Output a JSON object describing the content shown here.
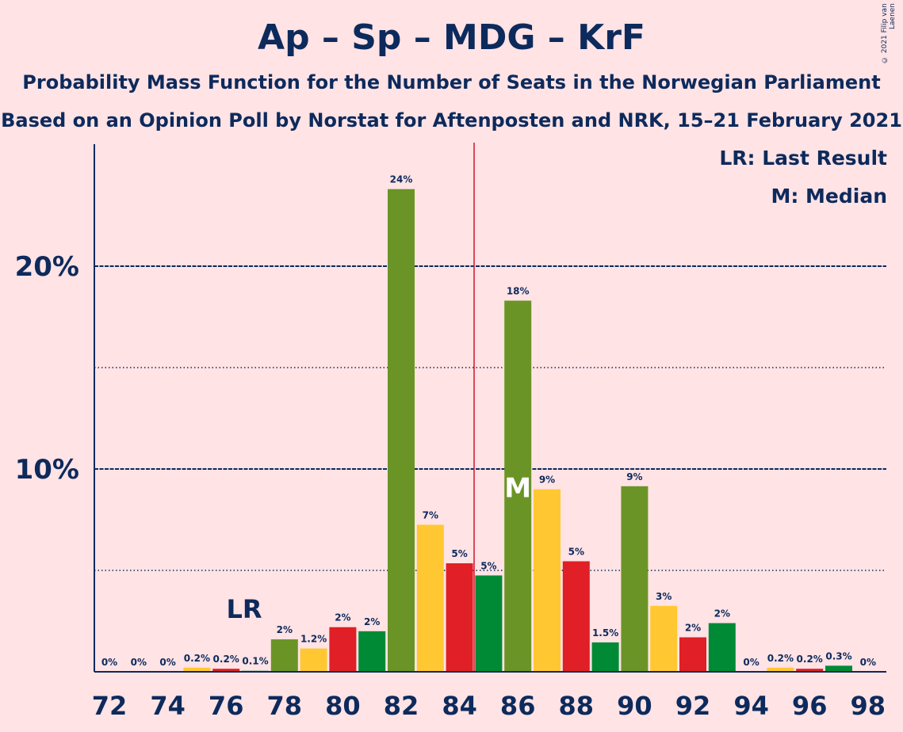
{
  "copyright": "© 2021 Filip van Laenen",
  "legend": {
    "lr": "LR: Last Result",
    "m": "M: Median"
  },
  "colors": {
    "background": "#ffe3e5",
    "text": "#0d2a5c",
    "Ap": "#e01f26",
    "Sp": "#6b9426",
    "MDG": "#ffc832",
    "KrF": "#008a36",
    "majority_line": "#d0152b"
  },
  "chart_data": {
    "type": "bar",
    "title": "Ap – Sp – MDG – KrF",
    "subtitle": "Probability Mass Function for the Number of Seats in the Norwegian Parliament",
    "subtitle2": "Based on an Opinion Poll by Norstat for Aftenposten and NRK, 15–21 February 2021",
    "xlabel": "",
    "ylabel": "",
    "ylim": [
      0,
      26
    ],
    "y_ticks": [
      {
        "value": 10,
        "label": "10%"
      },
      {
        "value": 20,
        "label": "20%"
      }
    ],
    "y_dotted_gridlines": [
      5,
      15
    ],
    "x_ticks": [
      72,
      74,
      76,
      78,
      80,
      82,
      84,
      86,
      88,
      90,
      92,
      94,
      96,
      98
    ],
    "majority_line_x": 84.5,
    "last_result": {
      "seat": 77,
      "label": "LR"
    },
    "median": {
      "seat": 86,
      "label": "M"
    },
    "bars": [
      {
        "seat": 72,
        "value": 0,
        "label": "0%",
        "color_key": "Ap"
      },
      {
        "seat": 73,
        "value": 0,
        "label": "0%",
        "color_key": "Ap"
      },
      {
        "seat": 74,
        "value": 0,
        "label": "0%",
        "color_key": "Ap"
      },
      {
        "seat": 75,
        "value": 0.2,
        "label": "0.2%",
        "color_key": "MDG"
      },
      {
        "seat": 76,
        "value": 0.15,
        "label": "0.2%",
        "color_key": "Ap"
      },
      {
        "seat": 77,
        "value": 0.05,
        "label": "0.1%",
        "color_key": "KrF"
      },
      {
        "seat": 78,
        "value": 1.6,
        "label": "2%",
        "color_key": "Sp"
      },
      {
        "seat": 79,
        "value": 1.15,
        "label": "1.2%",
        "color_key": "MDG"
      },
      {
        "seat": 80,
        "value": 2.2,
        "label": "2%",
        "color_key": "Ap"
      },
      {
        "seat": 81,
        "value": 2.0,
        "label": "2%",
        "color_key": "KrF"
      },
      {
        "seat": 82,
        "value": 23.8,
        "label": "24%",
        "color_key": "Sp"
      },
      {
        "seat": 83,
        "value": 7.25,
        "label": "7%",
        "color_key": "MDG"
      },
      {
        "seat": 84,
        "value": 5.35,
        "label": "5%",
        "color_key": "Ap"
      },
      {
        "seat": 85,
        "value": 4.75,
        "label": "5%",
        "color_key": "KrF"
      },
      {
        "seat": 86,
        "value": 18.3,
        "label": "18%",
        "color_key": "Sp"
      },
      {
        "seat": 87,
        "value": 9.0,
        "label": "9%",
        "color_key": "MDG"
      },
      {
        "seat": 88,
        "value": 5.45,
        "label": "5%",
        "color_key": "Ap"
      },
      {
        "seat": 89,
        "value": 1.45,
        "label": "1.5%",
        "color_key": "KrF"
      },
      {
        "seat": 90,
        "value": 9.15,
        "label": "9%",
        "color_key": "Sp"
      },
      {
        "seat": 91,
        "value": 3.25,
        "label": "3%",
        "color_key": "MDG"
      },
      {
        "seat": 92,
        "value": 1.7,
        "label": "2%",
        "color_key": "Ap"
      },
      {
        "seat": 93,
        "value": 2.4,
        "label": "2%",
        "color_key": "KrF"
      },
      {
        "seat": 94,
        "value": 0,
        "label": "0%",
        "color_key": "Sp"
      },
      {
        "seat": 95,
        "value": 0.2,
        "label": "0.2%",
        "color_key": "MDG"
      },
      {
        "seat": 96,
        "value": 0.15,
        "label": "0.2%",
        "color_key": "Ap"
      },
      {
        "seat": 97,
        "value": 0.3,
        "label": "0.3%",
        "color_key": "KrF"
      },
      {
        "seat": 98,
        "value": 0,
        "label": "0%",
        "color_key": "Sp"
      }
    ]
  }
}
